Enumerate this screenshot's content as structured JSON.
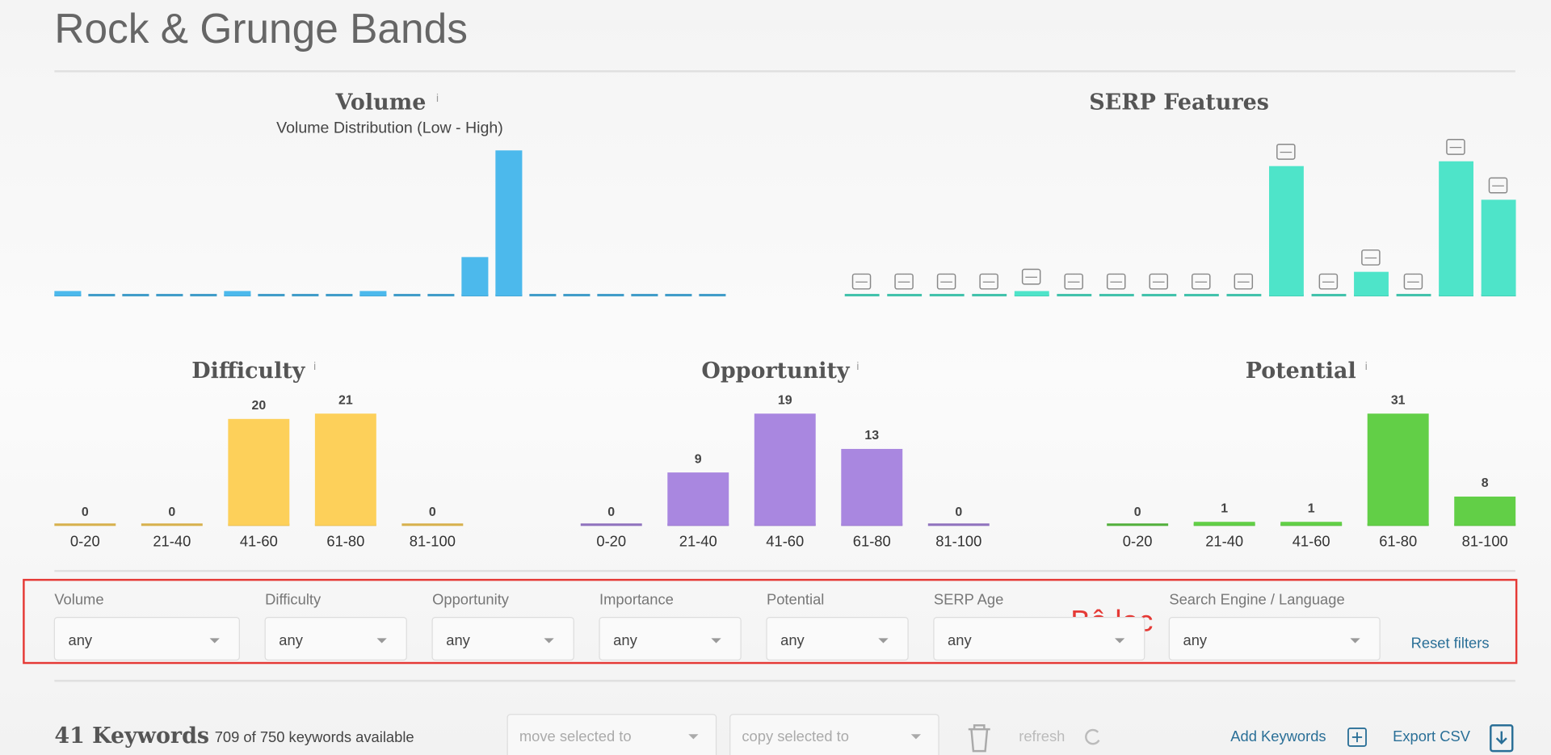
{
  "header": {
    "title": "Rock & Grunge Bands"
  },
  "info_marker": "i",
  "chart_data": [
    {
      "type": "bar",
      "title": "Volume",
      "subtitle": "Volume Distribution (Low - High)",
      "values": [
        1,
        0,
        0,
        0,
        0,
        1,
        0,
        0,
        0,
        1,
        0,
        0,
        8,
        30,
        0,
        0,
        0,
        0,
        0,
        0
      ],
      "color": "#4cb9ec"
    },
    {
      "type": "bar",
      "title": "SERP Features",
      "values": [
        0,
        0,
        0,
        0,
        1,
        0,
        0,
        0,
        0,
        0,
        27,
        0,
        5,
        0,
        28,
        20
      ],
      "color": "#4ee4c9"
    },
    {
      "type": "bar",
      "title": "Difficulty",
      "categories": [
        "0-20",
        "21-40",
        "41-60",
        "61-80",
        "81-100"
      ],
      "values": [
        0,
        0,
        20,
        21,
        0
      ],
      "color": "#fdd05a"
    },
    {
      "type": "bar",
      "title": "Opportunity",
      "categories": [
        "0-20",
        "21-40",
        "41-60",
        "61-80",
        "81-100"
      ],
      "values": [
        0,
        9,
        19,
        13,
        0
      ],
      "color": "#a987e0"
    },
    {
      "type": "bar",
      "title": "Potential",
      "categories": [
        "0-20",
        "21-40",
        "41-60",
        "61-80",
        "81-100"
      ],
      "values": [
        0,
        1,
        1,
        31,
        8
      ],
      "color": "#62cf47"
    }
  ],
  "filters": {
    "fields": [
      {
        "label": "Volume",
        "value": "any"
      },
      {
        "label": "Difficulty",
        "value": "any"
      },
      {
        "label": "Opportunity",
        "value": "any"
      },
      {
        "label": "Importance",
        "value": "any"
      },
      {
        "label": "Potential",
        "value": "any"
      },
      {
        "label": "SERP Age",
        "value": "any"
      },
      {
        "label": "Search Engine / Language",
        "value": "any"
      }
    ],
    "annotation": "Bộ lọc",
    "reset": "Reset filters"
  },
  "footer": {
    "count": "41 Keywords",
    "available": "709 of 750 keywords available",
    "move": "move selected to",
    "copy": "copy selected to",
    "refresh": "refresh",
    "add": "Add Keywords",
    "export": "Export CSV"
  }
}
